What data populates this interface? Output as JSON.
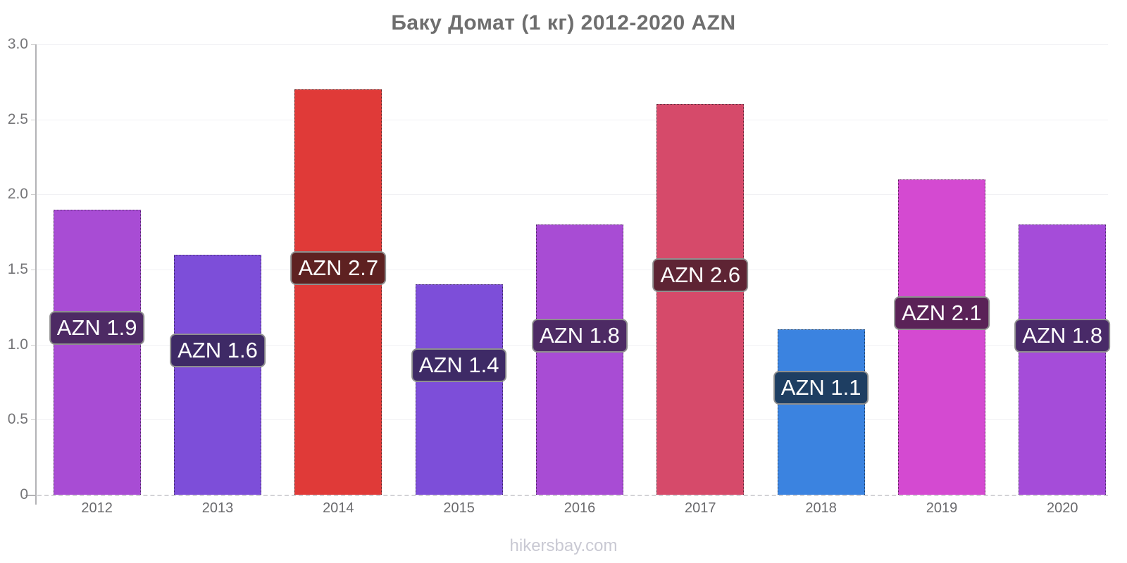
{
  "page": {
    "background": "#ffffff"
  },
  "chart_data": {
    "type": "bar",
    "title": "Баку Домат (1 кг) 2012-2020 AZN",
    "currency": "AZN",
    "categories": [
      "2012",
      "2013",
      "2014",
      "2015",
      "2016",
      "2017",
      "2018",
      "2019",
      "2020"
    ],
    "values": [
      1.9,
      1.6,
      2.7,
      1.4,
      1.8,
      2.6,
      1.1,
      2.1,
      1.8
    ],
    "bar_labels": [
      "AZN 1.9",
      "AZN 1.6",
      "AZN 2.7",
      "AZN 1.4",
      "AZN 1.8",
      "AZN 2.6",
      "AZN 1.1",
      "AZN 2.1",
      "AZN 1.8"
    ],
    "bar_colors": [
      "#a84cd4",
      "#7d4ed9",
      "#e03a38",
      "#7d4ed9",
      "#a84cd4",
      "#d64a6a",
      "#3b83e0",
      "#d44ad1",
      "#a54cd9"
    ],
    "bar_label_bg": [
      "#4d2a64",
      "#3e2a66",
      "#5e2121",
      "#3e2a66",
      "#4d2a64",
      "#5e2434",
      "#1e3e62",
      "#5a2257",
      "#492a68"
    ],
    "xlabel": "",
    "ylabel": "",
    "ylim": [
      0,
      3
    ],
    "yticks": [
      {
        "label": "3.0",
        "value": 3.0
      },
      {
        "label": "2.5",
        "value": 2.5
      },
      {
        "label": "2.0",
        "value": 2.0
      },
      {
        "label": "1.5",
        "value": 1.5
      },
      {
        "label": "1.0",
        "value": 1.0
      },
      {
        "label": "0.5",
        "value": 0.5
      },
      {
        "label": "0",
        "value": 0.0
      }
    ],
    "grid": true,
    "legend_position": "none"
  },
  "footer": {
    "text": "hikersbay.com"
  }
}
